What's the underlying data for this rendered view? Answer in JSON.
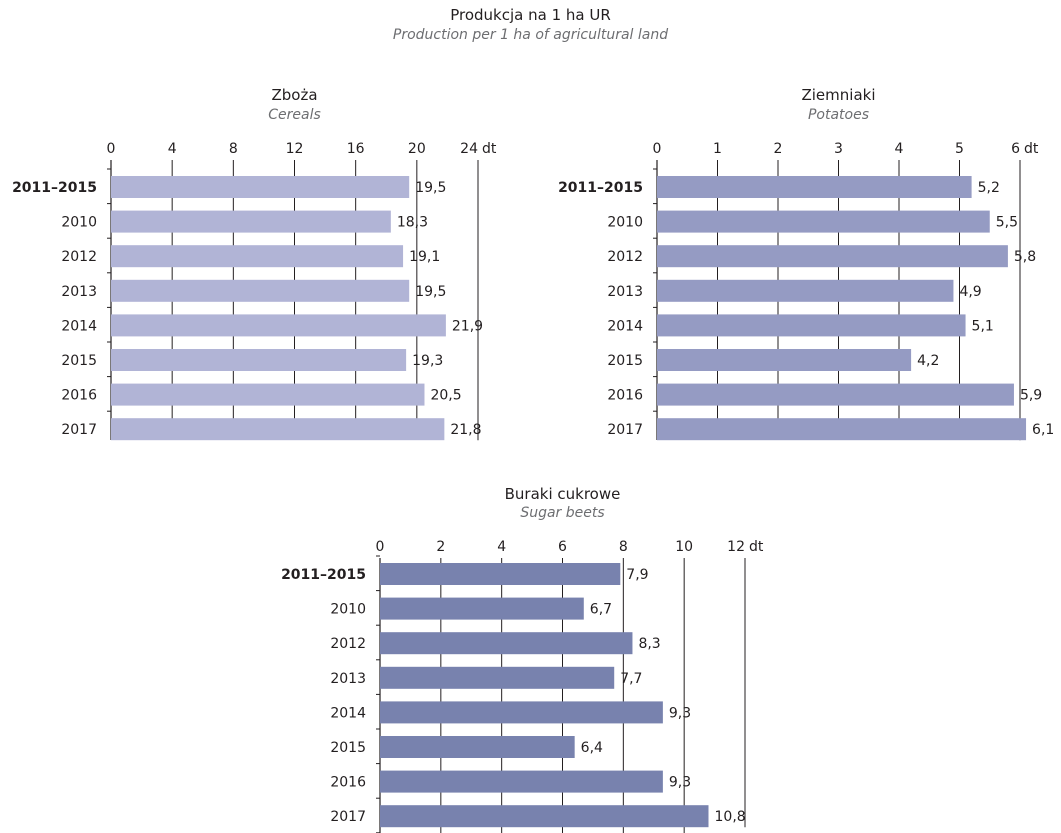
{
  "header": {
    "title": "Produkcja na 1 ha UR",
    "subtitle": "Production per 1 ha of agricultural land"
  },
  "colors": {
    "cereals": "#b1b4d6",
    "potatoes": "#959bc3",
    "sugar_beets": "#7882ae",
    "axis": "#231f20",
    "text": "#231f20",
    "subtitle": "#6d6e71"
  },
  "chart_data": [
    {
      "id": "cereals",
      "type": "bar",
      "orientation": "horizontal",
      "title": "Zboża",
      "subtitle": "Cereals",
      "unit": "dt",
      "categories": [
        "2011–2015",
        "2010",
        "2012",
        "2013",
        "2014",
        "2015",
        "2016",
        "2017"
      ],
      "bold_categories": [
        "2011–2015"
      ],
      "values": [
        19.5,
        18.3,
        19.1,
        19.5,
        21.9,
        19.3,
        20.5,
        21.8
      ],
      "value_labels": [
        "19,5",
        "18,3",
        "19,1",
        "19,5",
        "21,9",
        "19,3",
        "20,5",
        "21,8"
      ],
      "ticks": [
        0,
        4,
        8,
        12,
        16,
        20,
        24
      ],
      "tick_labels": [
        "0",
        "4",
        "8",
        "12",
        "16",
        "20",
        "24"
      ],
      "xlim": [
        0,
        24
      ],
      "grid": true
    },
    {
      "id": "potatoes",
      "type": "bar",
      "orientation": "horizontal",
      "title": "Ziemniaki",
      "subtitle": "Potatoes",
      "unit": "dt",
      "categories": [
        "2011–2015",
        "2010",
        "2012",
        "2013",
        "2014",
        "2015",
        "2016",
        "2017"
      ],
      "bold_categories": [
        "2011–2015"
      ],
      "values": [
        5.2,
        5.5,
        5.8,
        4.9,
        5.1,
        4.2,
        5.9,
        6.1
      ],
      "value_labels": [
        "5,2",
        "5,5",
        "5,8",
        "4,9",
        "5,1",
        "4,2",
        "5,9",
        "6,1"
      ],
      "ticks": [
        0,
        1,
        2,
        3,
        4,
        5,
        6
      ],
      "tick_labels": [
        "0",
        "1",
        "2",
        "3",
        "4",
        "5",
        "6"
      ],
      "xlim": [
        0,
        6
      ],
      "grid": true
    },
    {
      "id": "sugar_beets",
      "type": "bar",
      "orientation": "horizontal",
      "title": "Buraki cukrowe",
      "subtitle": "Sugar beets",
      "unit": "dt",
      "categories": [
        "2011–2015",
        "2010",
        "2012",
        "2013",
        "2014",
        "2015",
        "2016",
        "2017"
      ],
      "bold_categories": [
        "2011–2015"
      ],
      "values": [
        7.9,
        6.7,
        8.3,
        7.7,
        9.3,
        6.4,
        9.3,
        10.8
      ],
      "value_labels": [
        "7,9",
        "6,7",
        "8,3",
        "7,7",
        "9,3",
        "6,4",
        "9,3",
        "10,8"
      ],
      "ticks": [
        0,
        2,
        4,
        6,
        8,
        10,
        12
      ],
      "tick_labels": [
        "0",
        "2",
        "4",
        "6",
        "8",
        "10",
        "12"
      ],
      "xlim": [
        0,
        12
      ],
      "grid": true
    }
  ]
}
